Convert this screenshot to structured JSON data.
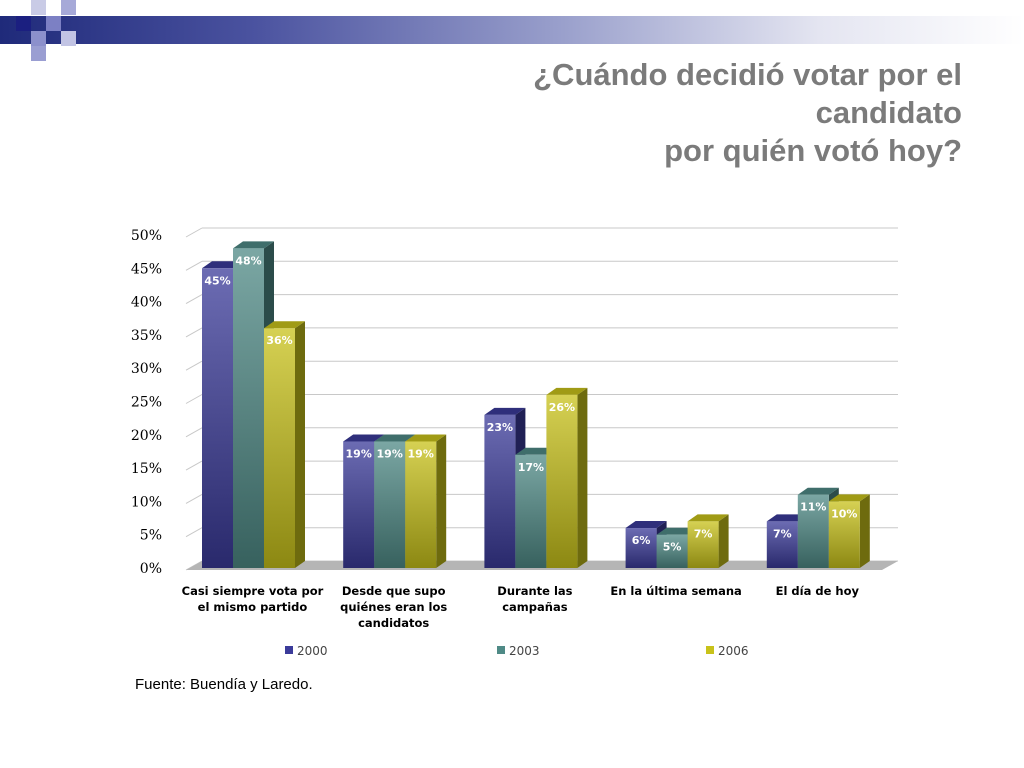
{
  "slide": {
    "title_lines": [
      "¿Cuándo decidió votar por el",
      "candidato",
      "por quién votó hoy?"
    ],
    "source": "Fuente: Buendía y Laredo."
  },
  "colors": {
    "series_2000": "#3b3b9a",
    "series_2003": "#4f8a86",
    "series_2006": "#c8c21a",
    "title": "#7b7b7b"
  },
  "chart_data": {
    "type": "bar",
    "categories": [
      [
        "Casi siempre vota por",
        "el mismo partido"
      ],
      [
        "Desde que supo",
        "quiénes eran los",
        "candidatos"
      ],
      [
        "Durante las",
        "campañas"
      ],
      [
        "En la última semana"
      ],
      [
        "El día de hoy"
      ]
    ],
    "series": [
      {
        "name": "2000",
        "values": [
          45,
          19,
          23,
          6,
          7
        ],
        "labels": [
          "45%",
          "19%",
          "23%",
          "6%",
          "7%"
        ]
      },
      {
        "name": "2003",
        "values": [
          48,
          19,
          17,
          5,
          11
        ],
        "labels": [
          "48%",
          "19%",
          "17%",
          "5%",
          "11%"
        ]
      },
      {
        "name": "2006",
        "values": [
          36,
          19,
          26,
          7,
          10
        ],
        "labels": [
          "36%",
          "19%",
          "26%",
          "7%",
          "10%"
        ]
      }
    ],
    "yticks": [
      "0%",
      "5%",
      "10%",
      "15%",
      "20%",
      "25%",
      "30%",
      "35%",
      "40%",
      "45%",
      "50%"
    ],
    "ylim": [
      0,
      50
    ],
    "grid": true,
    "legend": "bottom",
    "style": "3d-bar"
  }
}
